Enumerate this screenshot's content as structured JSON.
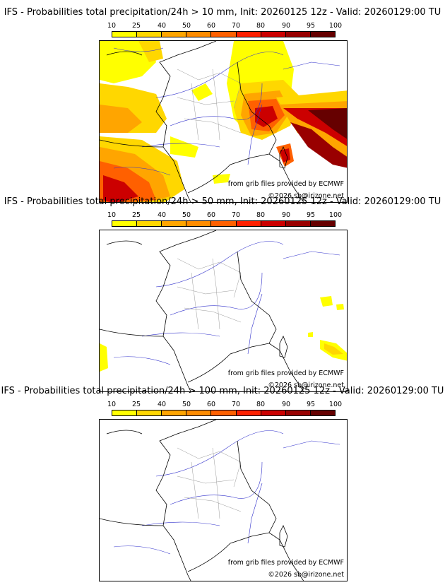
{
  "palette": [
    "#ffff00",
    "#ffd700",
    "#ffa500",
    "#ff8c00",
    "#ff6000",
    "#ff2000",
    "#cc0000",
    "#990000",
    "#660000",
    "#3a0000"
  ],
  "legend_ticks": [
    "10",
    "25",
    "40",
    "50",
    "60",
    "70",
    "80",
    "90",
    "95",
    "100"
  ],
  "credits": {
    "source": "from grib files provided by ECMWF",
    "copyright": "©2026 sb@irizone.net"
  },
  "panels": [
    {
      "title": "IFS - Probabilities total precipitation/24h > 10 mm, Init: 20260125 12z - Valid: 20260129:00 TU"
    },
    {
      "title": "IFS - Probabilities total precipitation/24h > 50 mm, Init: 20260125 12z - Valid: 20260129:00 TU"
    },
    {
      "title": "IFS - Probabilities total precipitation/24h > 100 mm, Init: 20260125 12z - Valid: 20260129:00 TU"
    }
  ]
}
